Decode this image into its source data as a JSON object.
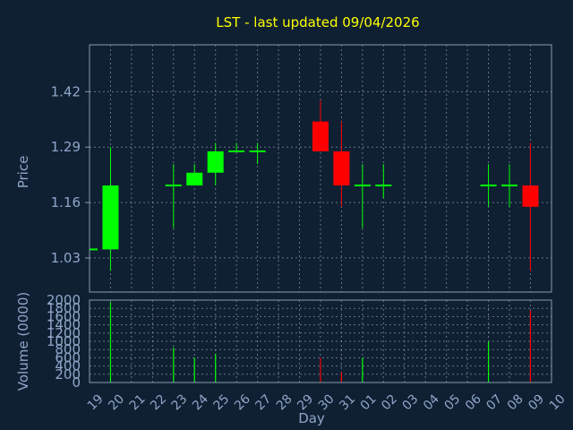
{
  "colors": {
    "up": "#00ff00",
    "down": "#ff0000",
    "background": "#0f2033",
    "title": "#ffff00",
    "axis": "#8fa6c8"
  },
  "chart_data": [
    {
      "type": "candlestick",
      "title": "LST - last updated 09/04/2026",
      "ylabel": "Price",
      "ylim": [
        0.95,
        1.53
      ],
      "yticks": [
        "1.42",
        "1.29",
        "1.16",
        "1.03"
      ],
      "grid": true,
      "candles": [
        {
          "day": "19",
          "open": 1.05,
          "high": 1.05,
          "low": 1.05,
          "close": 1.05
        },
        {
          "day": "20",
          "open": 1.05,
          "high": 1.29,
          "low": 1.0,
          "close": 1.2
        },
        {
          "day": "23",
          "open": 1.2,
          "high": 1.25,
          "low": 1.1,
          "close": 1.2
        },
        {
          "day": "24",
          "open": 1.2,
          "high": 1.25,
          "low": 1.2,
          "close": 1.23
        },
        {
          "day": "25",
          "open": 1.23,
          "high": 1.3,
          "low": 1.2,
          "close": 1.28
        },
        {
          "day": "26",
          "open": 1.28,
          "high": 1.3,
          "low": 1.28,
          "close": 1.28
        },
        {
          "day": "27",
          "open": 1.28,
          "high": 1.3,
          "low": 1.25,
          "close": 1.28
        },
        {
          "day": "30",
          "open": 1.35,
          "high": 1.4,
          "low": 1.28,
          "close": 1.28
        },
        {
          "day": "31",
          "open": 1.28,
          "high": 1.35,
          "low": 1.15,
          "close": 1.2
        },
        {
          "day": "01",
          "open": 1.2,
          "high": 1.25,
          "low": 1.1,
          "close": 1.2
        },
        {
          "day": "02",
          "open": 1.2,
          "high": 1.25,
          "low": 1.17,
          "close": 1.2
        },
        {
          "day": "07",
          "open": 1.2,
          "high": 1.25,
          "low": 1.15,
          "close": 1.2
        },
        {
          "day": "08",
          "open": 1.2,
          "high": 1.25,
          "low": 1.15,
          "close": 1.2
        },
        {
          "day": "09",
          "open": 1.2,
          "high": 1.3,
          "low": 1.0,
          "close": 1.15
        }
      ]
    },
    {
      "type": "bar",
      "ylabel": "Volume (0000)",
      "xlabel": "Day",
      "ylim": [
        0,
        2000
      ],
      "yticks": [
        "2000",
        "1800",
        "1600",
        "1400",
        "1200",
        "1000",
        "800",
        "600",
        "400",
        "200",
        "0"
      ],
      "categories": [
        "19",
        "20",
        "21",
        "22",
        "23",
        "24",
        "25",
        "26",
        "27",
        "28",
        "29",
        "30",
        "31",
        "01",
        "02",
        "03",
        "04",
        "05",
        "06",
        "07",
        "08",
        "09",
        "10"
      ],
      "values": [
        0,
        1950,
        0,
        0,
        850,
        600,
        700,
        0,
        0,
        0,
        0,
        600,
        250,
        600,
        0,
        0,
        0,
        0,
        0,
        1000,
        0,
        1750,
        0
      ],
      "direction": [
        "up",
        "up",
        "",
        "",
        "up",
        "up",
        "up",
        "",
        "",
        "",
        "",
        "down",
        "down",
        "up",
        "",
        "",
        "",
        "",
        "",
        "up",
        "",
        "down",
        ""
      ],
      "grid": true
    }
  ]
}
